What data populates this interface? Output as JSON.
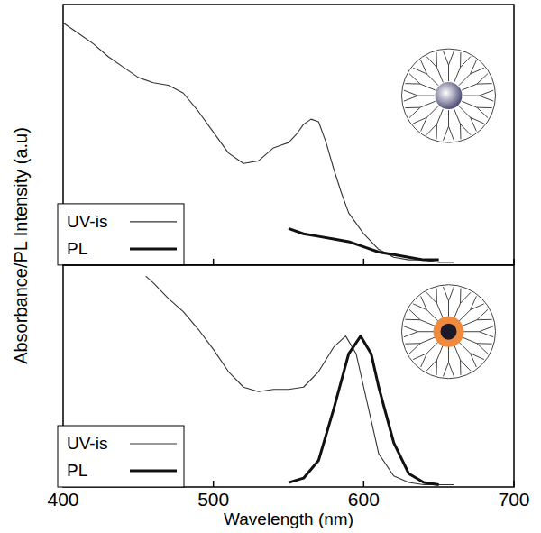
{
  "chart_data": [
    {
      "type": "line",
      "y_label": "Absorbance/PL Intensity (a.u)",
      "xlim": [
        400,
        700
      ],
      "xticks": [
        400,
        500,
        600,
        700
      ],
      "ylim": [
        0,
        1
      ],
      "tick_labels": false,
      "legend": "lower left",
      "series": [
        {
          "name": "UV-is",
          "color": "#333333",
          "line_style": "thin",
          "x": [
            400,
            410,
            420,
            430,
            440,
            450,
            460,
            470,
            480,
            490,
            500,
            510,
            520,
            530,
            540,
            545,
            550,
            555,
            560,
            565,
            570,
            575,
            580,
            585,
            590,
            600,
            610,
            620,
            630,
            640,
            650,
            660
          ],
          "values": [
            0.93,
            0.89,
            0.85,
            0.8,
            0.76,
            0.72,
            0.7,
            0.69,
            0.66,
            0.59,
            0.51,
            0.43,
            0.39,
            0.4,
            0.45,
            0.46,
            0.47,
            0.5,
            0.54,
            0.56,
            0.55,
            0.47,
            0.37,
            0.28,
            0.2,
            0.12,
            0.06,
            0.03,
            0.02,
            0.02,
            0.01,
            0.01
          ]
        },
        {
          "name": "PL",
          "color": "#111111",
          "line_style": "thick",
          "x": [
            550,
            560,
            570,
            580,
            590,
            600,
            610,
            620,
            630,
            640,
            650
          ],
          "values": [
            0.14,
            0.12,
            0.11,
            0.1,
            0.09,
            0.07,
            0.05,
            0.04,
            0.03,
            0.02,
            0.02
          ]
        }
      ]
    },
    {
      "type": "line",
      "x_label": "Wavelength (nm)",
      "xlim": [
        400,
        700
      ],
      "xticks": [
        400,
        500,
        600,
        700
      ],
      "ylim": [
        0,
        1
      ],
      "tick_labels": "x",
      "legend": "lower left",
      "series": [
        {
          "name": "UV-is",
          "color": "#333333",
          "line_style": "thin",
          "x": [
            455,
            460,
            470,
            480,
            490,
            500,
            510,
            520,
            530,
            540,
            550,
            560,
            570,
            580,
            588,
            595,
            600,
            605,
            610,
            620,
            630,
            640,
            660
          ],
          "values": [
            0.95,
            0.92,
            0.85,
            0.79,
            0.71,
            0.62,
            0.52,
            0.45,
            0.43,
            0.44,
            0.44,
            0.45,
            0.52,
            0.63,
            0.68,
            0.6,
            0.45,
            0.3,
            0.15,
            0.05,
            0.02,
            0.01,
            0.01
          ]
        },
        {
          "name": "PL",
          "color": "#111111",
          "line_style": "thick",
          "x": [
            550,
            560,
            570,
            580,
            590,
            598,
            605,
            610,
            620,
            630,
            640,
            650
          ],
          "values": [
            0.02,
            0.04,
            0.12,
            0.35,
            0.6,
            0.68,
            0.6,
            0.45,
            0.2,
            0.06,
            0.02,
            0.01
          ]
        }
      ]
    }
  ]
}
